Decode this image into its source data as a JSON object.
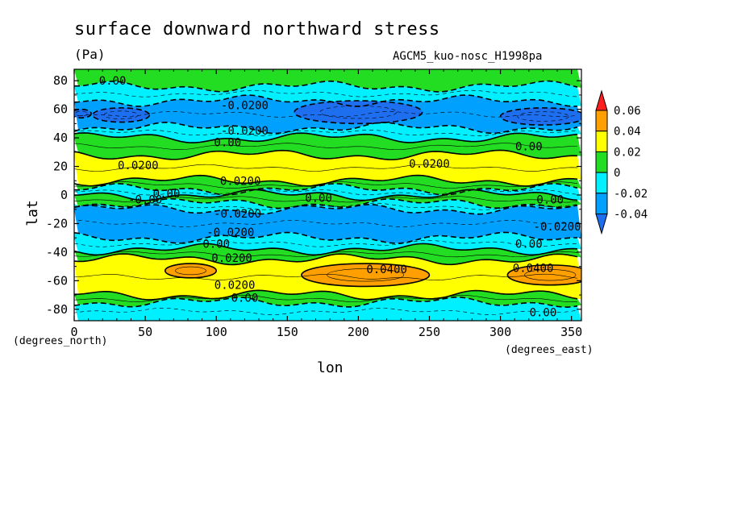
{
  "chart_data": {
    "type": "heatmap",
    "title": "surface downward northward stress",
    "units": "(Pa)",
    "model": "AGCM5_kuo-nosc_H1998pa",
    "xlabel": "lon",
    "ylabel": "lat",
    "x_units": "(degrees_east)",
    "y_units": "(degrees_north)",
    "xlim": [
      0,
      357
    ],
    "ylim": [
      -88,
      88
    ],
    "xticks": [
      0,
      50,
      100,
      150,
      200,
      250,
      300,
      350
    ],
    "yticks": [
      -80,
      -60,
      -40,
      -20,
      0,
      20,
      40,
      60,
      80
    ],
    "colorbar": {
      "levels": [
        -0.04,
        -0.02,
        0,
        0.02,
        0.04,
        0.06
      ],
      "labels": [
        "0.06",
        "0.04",
        "0.02",
        "0",
        "-0.02",
        "-0.04"
      ],
      "colors": [
        "#1e6ef0",
        "#00a0ff",
        "#00f0ff",
        "#22dd22",
        "#ffff00",
        "#ffa000",
        "#ff1e1e"
      ]
    },
    "bands": [
      {
        "lat": [
          76,
          88
        ],
        "level": 0.01
      },
      {
        "lat": [
          66,
          76
        ],
        "level": -0.01
      },
      {
        "lat": [
          47,
          66
        ],
        "level": -0.03
      },
      {
        "lat": [
          40,
          47
        ],
        "level": -0.01
      },
      {
        "lat": [
          28,
          40
        ],
        "level": 0.01
      },
      {
        "lat": [
          10,
          28
        ],
        "level": 0.03
      },
      {
        "lat": [
          4,
          10
        ],
        "level": 0.01
      },
      {
        "lat": [
          0,
          4
        ],
        "level": -0.01
      },
      {
        "lat": [
          -6,
          0
        ],
        "level": 0.01
      },
      {
        "lat": [
          -10,
          -6
        ],
        "level": -0.01
      },
      {
        "lat": [
          -30,
          -10
        ],
        "level": -0.03
      },
      {
        "lat": [
          -38,
          -30
        ],
        "level": -0.01
      },
      {
        "lat": [
          -45,
          -38
        ],
        "level": 0.01
      },
      {
        "lat": [
          -70,
          -45
        ],
        "level": 0.03
      },
      {
        "lat": [
          -75,
          -70
        ],
        "level": 0.01
      },
      {
        "lat": [
          -88,
          -75
        ],
        "level": -0.01
      }
    ],
    "blobs": [
      {
        "lon": 33,
        "lat": 56,
        "rlon": 20,
        "rlat": 5,
        "level": -0.05
      },
      {
        "lon": 200,
        "lat": 58,
        "rlon": 45,
        "rlat": 8,
        "level": -0.05
      },
      {
        "lon": 330,
        "lat": 55,
        "rlon": 30,
        "rlat": 6,
        "level": -0.05
      },
      {
        "lon": 5,
        "lat": 57,
        "rlon": 7,
        "rlat": 3,
        "level": -0.05
      },
      {
        "lon": 82,
        "lat": -53,
        "rlon": 18,
        "rlat": 5,
        "level": 0.05
      },
      {
        "lon": 205,
        "lat": -56,
        "rlon": 45,
        "rlat": 8,
        "level": 0.05
      },
      {
        "lon": 335,
        "lat": -56,
        "rlon": 30,
        "rlat": 7,
        "level": 0.05
      }
    ],
    "contour_labels": [
      {
        "text": "0.00",
        "lon": 27,
        "lat": 80
      },
      {
        "text": "-0.0200",
        "lon": 120,
        "lat": 63
      },
      {
        "text": "-0.0200",
        "lon": 120,
        "lat": 45
      },
      {
        "text": "0.00",
        "lon": 108,
        "lat": 37
      },
      {
        "text": "0.00",
        "lon": 320,
        "lat": 34
      },
      {
        "text": "0.0200",
        "lon": 45,
        "lat": 21
      },
      {
        "text": "0.0200",
        "lon": 250,
        "lat": 22
      },
      {
        "text": "0.0200",
        "lon": 117,
        "lat": 10
      },
      {
        "text": "0.00",
        "lon": 65,
        "lat": 1
      },
      {
        "text": "-0.00",
        "lon": 50,
        "lat": -3
      },
      {
        "text": "0.00",
        "lon": 172,
        "lat": -2
      },
      {
        "text": "0.00",
        "lon": 335,
        "lat": -3
      },
      {
        "text": "-0.0200",
        "lon": 115,
        "lat": -13
      },
      {
        "text": "-0.0200",
        "lon": 110,
        "lat": -26
      },
      {
        "text": "-0.0200",
        "lon": 340,
        "lat": -22
      },
      {
        "text": "0.00",
        "lon": 100,
        "lat": -34
      },
      {
        "text": "0.00",
        "lon": 320,
        "lat": -34
      },
      {
        "text": "0.0200",
        "lon": 111,
        "lat": -44
      },
      {
        "text": "0.0400",
        "lon": 220,
        "lat": -52
      },
      {
        "text": "0.0400",
        "lon": 323,
        "lat": -51
      },
      {
        "text": "0.0200",
        "lon": 113,
        "lat": -63
      },
      {
        "text": "0.00",
        "lon": 120,
        "lat": -72
      },
      {
        "text": "0.00",
        "lon": 330,
        "lat": -82
      }
    ]
  }
}
